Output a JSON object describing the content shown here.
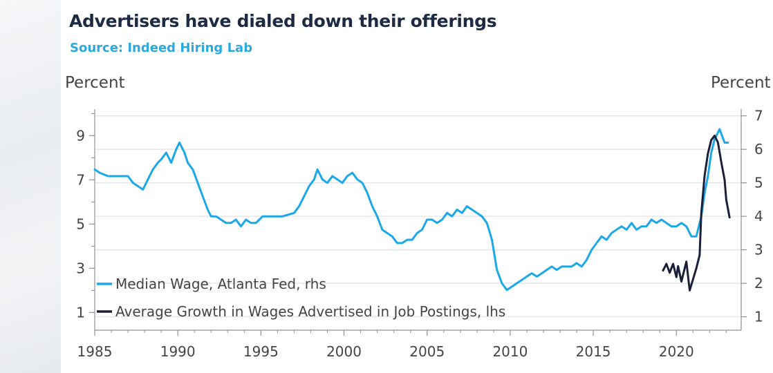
{
  "colors": {
    "median_wage": "#1aa8e8",
    "advertised_wage": "#1b1f3a",
    "title": "#1e2a44",
    "source": "#2aa8e0"
  },
  "chart_data": {
    "type": "line",
    "title": "Advertisers have dialed down their offerings",
    "subtitle": "Source: Indeed Hiring Lab",
    "ylabel_left": "Percent",
    "ylabel_right": "Percent",
    "left_axis": {
      "range": [
        0.2,
        10.2
      ],
      "ticks": [
        1,
        3,
        5,
        7,
        9
      ],
      "labels": [
        "1",
        "3",
        "5",
        "7",
        "9"
      ]
    },
    "right_axis": {
      "range": [
        0.6,
        7.2
      ],
      "ticks": [
        1,
        2,
        3,
        4,
        5,
        6,
        7
      ],
      "labels": [
        "1",
        "2",
        "3",
        "4",
        "5",
        "6",
        "7"
      ]
    },
    "x_axis": {
      "range": [
        1985,
        2023.9
      ],
      "ticks": [
        1985,
        1990,
        1995,
        2000,
        2005,
        2010,
        2015,
        2020
      ],
      "labels": [
        "1985",
        "1990",
        "1995",
        "2000",
        "2005",
        "2010",
        "2015",
        "2020"
      ]
    },
    "grid": true,
    "legend_position": "bottom-left",
    "series": [
      {
        "name": "Median Wage, Atlanta Fed, rhs",
        "axis": "right",
        "x": [
          1985.0,
          1985.3,
          1985.8,
          1986.5,
          1987.0,
          1987.3,
          1987.6,
          1987.9,
          1988.2,
          1988.5,
          1988.8,
          1989.0,
          1989.3,
          1989.6,
          1989.9,
          1990.1,
          1990.4,
          1990.6,
          1990.9,
          1991.2,
          1991.5,
          1991.8,
          1992.0,
          1992.3,
          1992.6,
          1992.9,
          1993.2,
          1993.5,
          1993.8,
          1994.1,
          1994.4,
          1994.7,
          1994.9,
          1995.1,
          1995.4,
          1995.8,
          1996.3,
          1997.0,
          1997.3,
          1997.6,
          1997.9,
          1998.2,
          1998.4,
          1998.7,
          1999.0,
          1999.3,
          1999.6,
          1999.9,
          2000.2,
          2000.5,
          2000.8,
          2001.1,
          2001.4,
          2001.7,
          2002.0,
          2002.3,
          2002.6,
          2002.9,
          2003.2,
          2003.5,
          2003.8,
          2004.1,
          2004.4,
          2004.7,
          2005.0,
          2005.3,
          2005.6,
          2005.9,
          2006.2,
          2006.5,
          2006.8,
          2007.1,
          2007.4,
          2007.7,
          2008.0,
          2008.3,
          2008.6,
          2008.9,
          2009.2,
          2009.5,
          2009.8,
          2010.1,
          2010.4,
          2010.7,
          2011.0,
          2011.3,
          2011.6,
          2011.9,
          2012.2,
          2012.5,
          2012.8,
          2013.1,
          2013.4,
          2013.7,
          2014.0,
          2014.3,
          2014.6,
          2014.9,
          2015.2,
          2015.5,
          2015.8,
          2016.1,
          2016.4,
          2016.7,
          2017.0,
          2017.3,
          2017.6,
          2017.9,
          2018.2,
          2018.5,
          2018.8,
          2019.1,
          2019.4,
          2019.7,
          2020.0,
          2020.3,
          2020.6,
          2020.9,
          2021.2,
          2021.5,
          2021.7,
          2021.9,
          2022.1,
          2022.3,
          2022.6,
          2022.9,
          2023.1
        ],
        "values": [
          5.4,
          5.3,
          5.2,
          5.2,
          5.2,
          5.0,
          4.9,
          4.8,
          5.1,
          5.4,
          5.6,
          5.7,
          5.9,
          5.6,
          6.0,
          6.2,
          5.9,
          5.6,
          5.4,
          5.0,
          4.6,
          4.2,
          4.0,
          4.0,
          3.9,
          3.8,
          3.8,
          3.9,
          3.7,
          3.9,
          3.8,
          3.8,
          3.9,
          4.0,
          4.0,
          4.0,
          4.0,
          4.1,
          4.3,
          4.6,
          4.9,
          5.1,
          5.4,
          5.1,
          5.0,
          5.2,
          5.1,
          5.0,
          5.2,
          5.3,
          5.1,
          5.0,
          4.7,
          4.3,
          4.0,
          3.6,
          3.5,
          3.4,
          3.2,
          3.2,
          3.3,
          3.3,
          3.5,
          3.6,
          3.9,
          3.9,
          3.8,
          3.9,
          4.1,
          4.0,
          4.2,
          4.1,
          4.3,
          4.2,
          4.1,
          4.0,
          3.8,
          3.3,
          2.4,
          2.0,
          1.8,
          1.9,
          2.0,
          2.1,
          2.2,
          2.3,
          2.2,
          2.3,
          2.4,
          2.5,
          2.4,
          2.5,
          2.5,
          2.5,
          2.6,
          2.5,
          2.7,
          3.0,
          3.2,
          3.4,
          3.3,
          3.5,
          3.6,
          3.7,
          3.6,
          3.8,
          3.6,
          3.7,
          3.7,
          3.9,
          3.8,
          3.9,
          3.8,
          3.7,
          3.7,
          3.8,
          3.7,
          3.4,
          3.4,
          4.0,
          4.7,
          5.2,
          5.9,
          6.3,
          6.6,
          6.2,
          6.2
        ]
      },
      {
        "name": "Average Growth in Wages Advertised in Job Postings, lhs",
        "axis": "left",
        "x": [
          2019.2,
          2019.4,
          2019.6,
          2019.8,
          2020.0,
          2020.1,
          2020.3,
          2020.5,
          2020.6,
          2020.8,
          2021.0,
          2021.2,
          2021.4,
          2021.5,
          2021.7,
          2021.9,
          2022.1,
          2022.3,
          2022.5,
          2022.7,
          2022.9,
          2023.0,
          2023.2
        ],
        "values": [
          2.9,
          3.2,
          2.8,
          3.2,
          2.6,
          3.1,
          2.4,
          3.0,
          3.3,
          2.0,
          2.5,
          3.0,
          3.6,
          5.5,
          7.2,
          8.2,
          8.8,
          9.0,
          8.7,
          7.8,
          7.0,
          6.1,
          5.3
        ]
      }
    ]
  }
}
